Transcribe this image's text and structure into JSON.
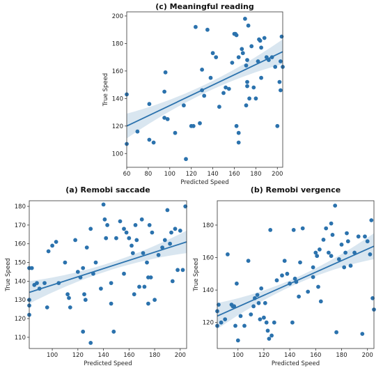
{
  "chart_data": [
    {
      "id": "c",
      "type": "scatter",
      "title": "(c) Meaningful  reading",
      "xlabel": "Predicted Speed",
      "ylabel": "True Speed",
      "xlim": [
        60,
        205
      ],
      "ylim": [
        90,
        203
      ],
      "xticks": [
        60,
        80,
        100,
        120,
        140,
        160,
        180,
        200
      ],
      "yticks": [
        100,
        120,
        140,
        160,
        180,
        200
      ],
      "regression": {
        "x": [
          60,
          205
        ],
        "y": [
          120,
          174
        ],
        "ci_halfwidth_ends": 9,
        "ci_halfwidth_center": 3
      },
      "points": [
        [
          60,
          107
        ],
        [
          60,
          143
        ],
        [
          70,
          116
        ],
        [
          81,
          136
        ],
        [
          81,
          110
        ],
        [
          85,
          108
        ],
        [
          95,
          145
        ],
        [
          95,
          126
        ],
        [
          96,
          159
        ],
        [
          98,
          125
        ],
        [
          105,
          115
        ],
        [
          113,
          135
        ],
        [
          115,
          96
        ],
        [
          120,
          120
        ],
        [
          122,
          120
        ],
        [
          124,
          192
        ],
        [
          128,
          122
        ],
        [
          130,
          161
        ],
        [
          130,
          146
        ],
        [
          132,
          142
        ],
        [
          135,
          190
        ],
        [
          138,
          155
        ],
        [
          140,
          173
        ],
        [
          143,
          170
        ],
        [
          146,
          134
        ],
        [
          150,
          144
        ],
        [
          152,
          148
        ],
        [
          155,
          147
        ],
        [
          160,
          187
        ],
        [
          161,
          187
        ],
        [
          162,
          186
        ],
        [
          162,
          120
        ],
        [
          164,
          108
        ],
        [
          164,
          115
        ],
        [
          164,
          170
        ],
        [
          167,
          176
        ],
        [
          168,
          173
        ],
        [
          170,
          198
        ],
        [
          171,
          164
        ],
        [
          171,
          135
        ],
        [
          172,
          152
        ],
        [
          172,
          149
        ],
        [
          172,
          168
        ],
        [
          173,
          193
        ],
        [
          174,
          140
        ],
        [
          176,
          178
        ],
        [
          178,
          148
        ],
        [
          182,
          167
        ],
        [
          183,
          183
        ],
        [
          184,
          182
        ],
        [
          185,
          177
        ],
        [
          185,
          155
        ],
        [
          188,
          184
        ],
        [
          190,
          170
        ],
        [
          192,
          168
        ],
        [
          195,
          170
        ],
        [
          198,
          163
        ],
        [
          200,
          120
        ],
        [
          202,
          152
        ],
        [
          203,
          146
        ],
        [
          203,
          167
        ],
        [
          204,
          185
        ],
        [
          205,
          163
        ],
        [
          180,
          140
        ],
        [
          158,
          166
        ]
      ]
    },
    {
      "id": "a",
      "type": "scatter",
      "title": "(a) Remobi saccade",
      "xlabel": "Predicted Speed",
      "ylabel": "True Speed",
      "xlim": [
        82,
        205
      ],
      "ylim": [
        104,
        183
      ],
      "xticks": [
        100,
        120,
        140,
        160,
        180,
        200
      ],
      "yticks": [
        110,
        120,
        130,
        140,
        150,
        160,
        170,
        180
      ],
      "regression": {
        "x": [
          82,
          205
        ],
        "y": [
          134,
          161
        ],
        "ci_halfwidth_ends": 6,
        "ci_halfwidth_center": 2
      },
      "points": [
        [
          82,
          122
        ],
        [
          82,
          127
        ],
        [
          82,
          130
        ],
        [
          82,
          147
        ],
        [
          84,
          147
        ],
        [
          86,
          138
        ],
        [
          88,
          139
        ],
        [
          90,
          136
        ],
        [
          94,
          139
        ],
        [
          96,
          126
        ],
        [
          97,
          156
        ],
        [
          100,
          159
        ],
        [
          103,
          161
        ],
        [
          105,
          139
        ],
        [
          110,
          150
        ],
        [
          112,
          133
        ],
        [
          113,
          131
        ],
        [
          114,
          126
        ],
        [
          118,
          162
        ],
        [
          120,
          145
        ],
        [
          122,
          142
        ],
        [
          124,
          113
        ],
        [
          124,
          147
        ],
        [
          125,
          133
        ],
        [
          126,
          130
        ],
        [
          127,
          158
        ],
        [
          130,
          107
        ],
        [
          130,
          168
        ],
        [
          132,
          144
        ],
        [
          134,
          150
        ],
        [
          138,
          136
        ],
        [
          140,
          181
        ],
        [
          141,
          173
        ],
        [
          142,
          163
        ],
        [
          143,
          170
        ],
        [
          146,
          139
        ],
        [
          146,
          128
        ],
        [
          148,
          113
        ],
        [
          150,
          163
        ],
        [
          153,
          172
        ],
        [
          156,
          144
        ],
        [
          158,
          166
        ],
        [
          160,
          163
        ],
        [
          162,
          159
        ],
        [
          163,
          155
        ],
        [
          164,
          133
        ],
        [
          165,
          170
        ],
        [
          166,
          162
        ],
        [
          168,
          137
        ],
        [
          170,
          173
        ],
        [
          171,
          155
        ],
        [
          172,
          137
        ],
        [
          174,
          150
        ],
        [
          175,
          128
        ],
        [
          176,
          170
        ],
        [
          177,
          142
        ],
        [
          178,
          166
        ],
        [
          180,
          130
        ],
        [
          183,
          154
        ],
        [
          186,
          158
        ],
        [
          188,
          162
        ],
        [
          190,
          178
        ],
        [
          192,
          160
        ],
        [
          193,
          166
        ],
        [
          194,
          140
        ],
        [
          196,
          168
        ],
        [
          198,
          146
        ],
        [
          200,
          167
        ],
        [
          202,
          146
        ],
        [
          204,
          180
        ],
        [
          175,
          142
        ],
        [
          156,
          168
        ]
      ]
    },
    {
      "id": "b",
      "type": "scatter",
      "title": "(b) Remobi vergence",
      "xlabel": "Predicted Speed",
      "ylabel": "True Speed",
      "xlim": [
        84,
        205
      ],
      "ylim": [
        104,
        195
      ],
      "xticks": [
        100,
        120,
        140,
        160,
        180,
        200
      ],
      "yticks": [
        120,
        140,
        160,
        180
      ],
      "regression": {
        "x": [
          84,
          205
        ],
        "y": [
          124,
          167
        ],
        "ci_halfwidth_ends": 8,
        "ci_halfwidth_center": 2
      },
      "points": [
        [
          84,
          118
        ],
        [
          84,
          127
        ],
        [
          85,
          131
        ],
        [
          87,
          120
        ],
        [
          90,
          122
        ],
        [
          92,
          162
        ],
        [
          95,
          131
        ],
        [
          96,
          130
        ],
        [
          97,
          130
        ],
        [
          98,
          118
        ],
        [
          99,
          144
        ],
        [
          100,
          109
        ],
        [
          102,
          124
        ],
        [
          105,
          118
        ],
        [
          108,
          158
        ],
        [
          110,
          125
        ],
        [
          112,
          130
        ],
        [
          113,
          135
        ],
        [
          115,
          137
        ],
        [
          116,
          132
        ],
        [
          117,
          122
        ],
        [
          118,
          141
        ],
        [
          120,
          123
        ],
        [
          121,
          132
        ],
        [
          122,
          120
        ],
        [
          123,
          115
        ],
        [
          124,
          110
        ],
        [
          125,
          177
        ],
        [
          126,
          112
        ],
        [
          128,
          120
        ],
        [
          130,
          146
        ],
        [
          134,
          149
        ],
        [
          136,
          158
        ],
        [
          138,
          150
        ],
        [
          140,
          144
        ],
        [
          142,
          120
        ],
        [
          143,
          177
        ],
        [
          144,
          147
        ],
        [
          145,
          145
        ],
        [
          147,
          136
        ],
        [
          148,
          157
        ],
        [
          150,
          178
        ],
        [
          154,
          139
        ],
        [
          158,
          154
        ],
        [
          160,
          163
        ],
        [
          161,
          161
        ],
        [
          162,
          142
        ],
        [
          163,
          165
        ],
        [
          164,
          133
        ],
        [
          166,
          171
        ],
        [
          168,
          178
        ],
        [
          170,
          163
        ],
        [
          172,
          161
        ],
        [
          173,
          174
        ],
        [
          175,
          192
        ],
        [
          176,
          114
        ],
        [
          178,
          159
        ],
        [
          180,
          168
        ],
        [
          182,
          154
        ],
        [
          183,
          163
        ],
        [
          184,
          175
        ],
        [
          185,
          170
        ],
        [
          187,
          155
        ],
        [
          190,
          163
        ],
        [
          193,
          173
        ],
        [
          196,
          113
        ],
        [
          198,
          173
        ],
        [
          200,
          170
        ],
        [
          202,
          162
        ],
        [
          203,
          183
        ],
        [
          204,
          135
        ],
        [
          205,
          128
        ],
        [
          158,
          148
        ],
        [
          172,
          181
        ]
      ]
    }
  ]
}
